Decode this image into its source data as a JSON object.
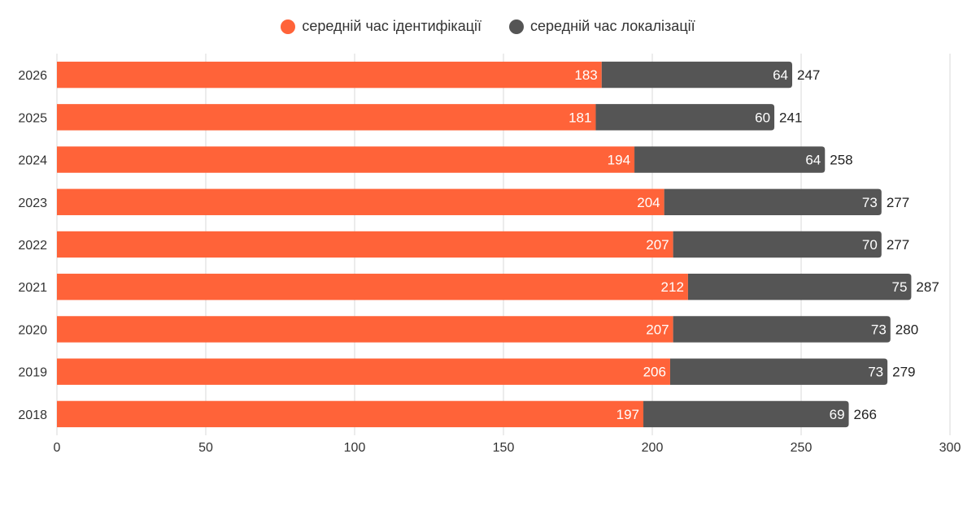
{
  "legend": {
    "identification": "середній час ідентифікації",
    "containment": "середній час локалізації"
  },
  "colors": {
    "identification": "#ff6339",
    "containment": "#555555",
    "grid": "#d9d9d9"
  },
  "chart_data": {
    "type": "bar",
    "orientation": "horizontal",
    "stacked": true,
    "categories": [
      "2026",
      "2025",
      "2024",
      "2023",
      "2022",
      "2021",
      "2020",
      "2019",
      "2018"
    ],
    "series": [
      {
        "name": "середній час ідентифікації",
        "values": [
          183,
          181,
          194,
          204,
          207,
          212,
          207,
          206,
          197
        ]
      },
      {
        "name": "середній час локалізації",
        "values": [
          64,
          60,
          64,
          73,
          70,
          75,
          73,
          73,
          69
        ]
      }
    ],
    "totals": [
      247,
      241,
      258,
      277,
      277,
      287,
      280,
      279,
      266
    ],
    "xlim": [
      0,
      300
    ],
    "xticks": [
      0,
      50,
      100,
      150,
      200,
      250,
      300
    ],
    "grid": "vertical",
    "legend_position": "top-center",
    "data_labels": true
  }
}
